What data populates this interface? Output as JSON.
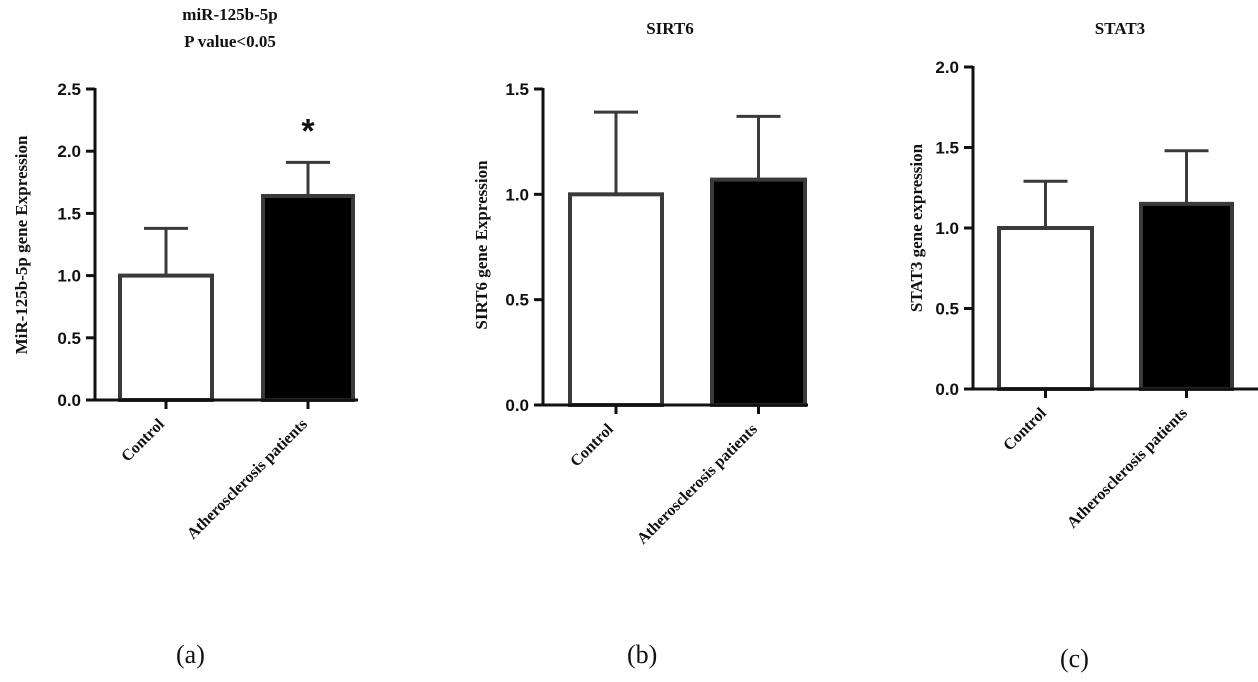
{
  "chart_data": [
    {
      "type": "bar",
      "title_lines": [
        "miR-125b-5p",
        "P value<0.05"
      ],
      "ylabel": "MiR-125b-5p gene Expression",
      "categories": [
        "Control",
        "Atherosclerosis patients"
      ],
      "values": [
        1.0,
        1.64
      ],
      "error_upper": [
        0.38,
        0.27
      ],
      "bar_colors": [
        "#ffffff",
        "#000000"
      ],
      "yticks": [
        "0.0",
        "0.5",
        "1.0",
        "1.5",
        "2.0",
        "2.5"
      ],
      "ylim": [
        0,
        2.5
      ],
      "annotation": "*",
      "annotation_category": "Atherosclerosis patients",
      "caption": "(a)"
    },
    {
      "type": "bar",
      "title_lines": [
        "SIRT6"
      ],
      "ylabel": "SIRT6 gene Expression",
      "categories": [
        "Control",
        "Atherosclerosis patients"
      ],
      "values": [
        1.0,
        1.07
      ],
      "error_upper": [
        0.39,
        0.3
      ],
      "bar_colors": [
        "#ffffff",
        "#000000"
      ],
      "yticks": [
        "0.0",
        "0.5",
        "1.0",
        "1.5"
      ],
      "ylim": [
        0,
        1.5
      ],
      "caption": "(b)"
    },
    {
      "type": "bar",
      "title_lines": [
        "STAT3"
      ],
      "ylabel": "STAT3 gene expression",
      "categories": [
        "Control",
        "Atherosclerosis patients"
      ],
      "values": [
        1.0,
        1.15
      ],
      "error_upper": [
        0.29,
        0.33
      ],
      "bar_colors": [
        "#ffffff",
        "#000000"
      ],
      "yticks": [
        "0.0",
        "0.5",
        "1.0",
        "1.5",
        "2.0"
      ],
      "ylim": [
        0,
        2.0
      ],
      "caption": "(c)"
    }
  ]
}
